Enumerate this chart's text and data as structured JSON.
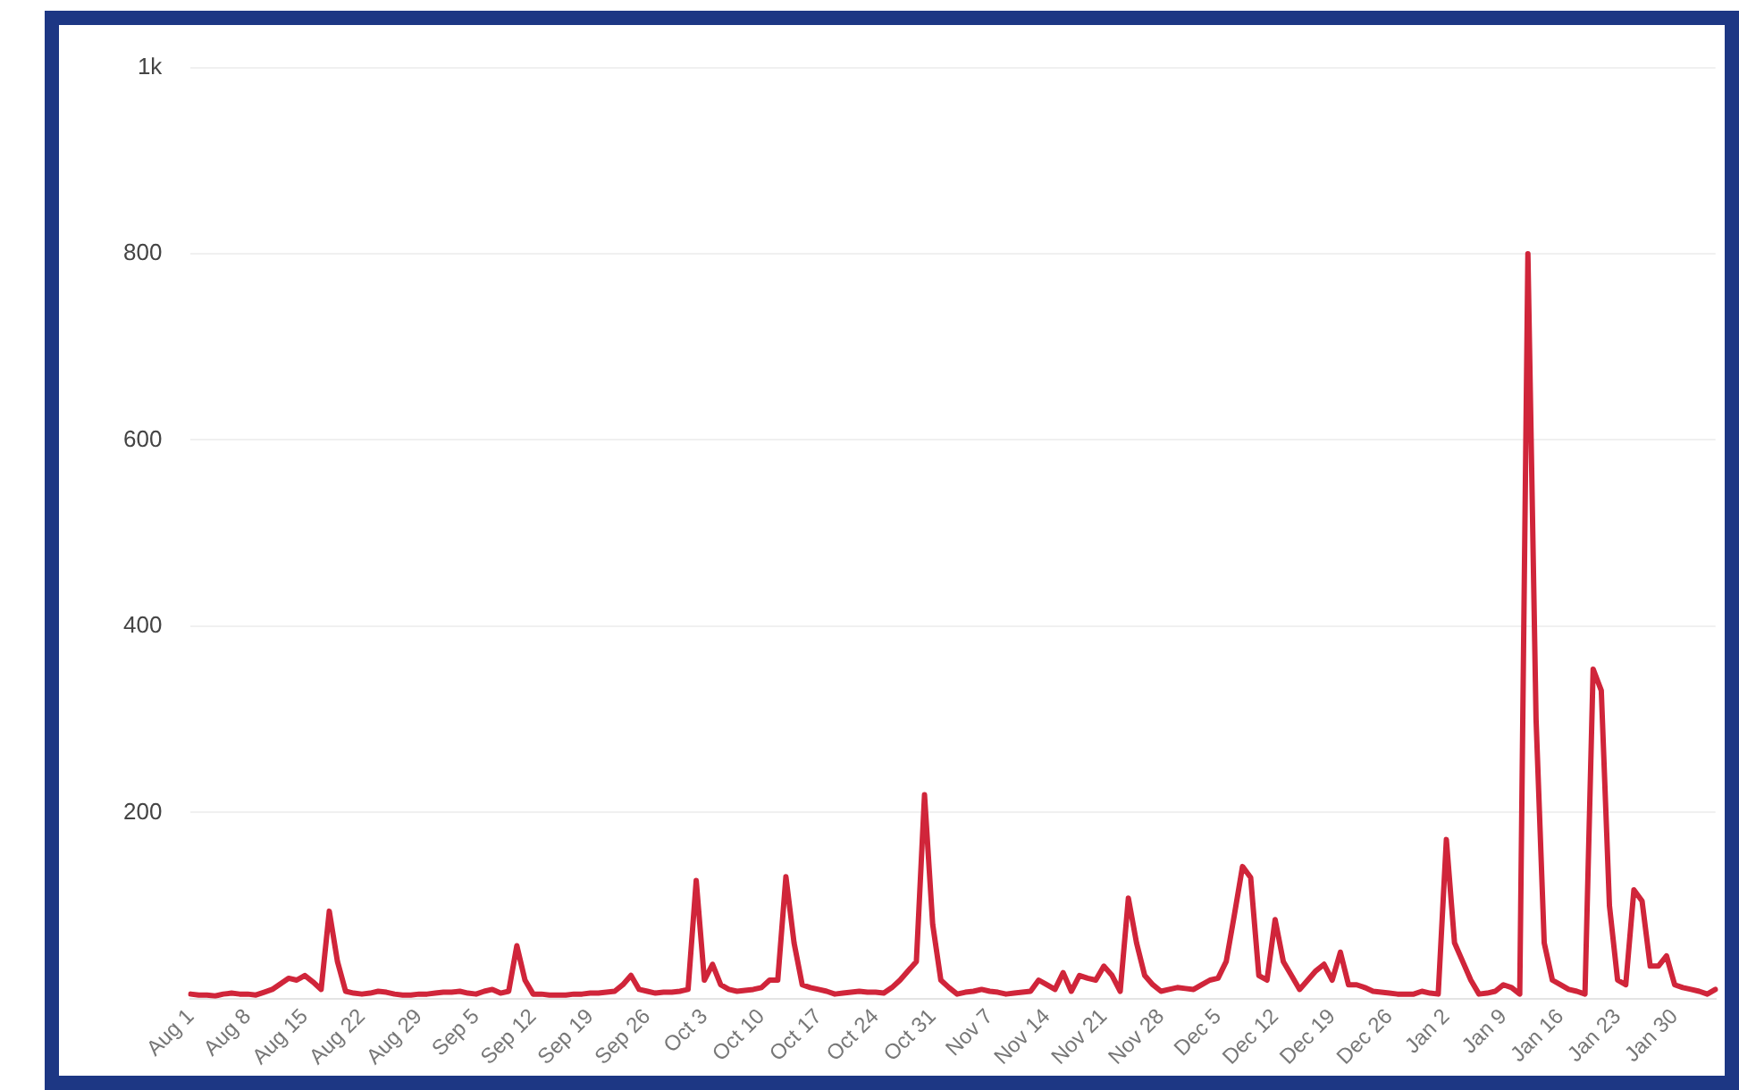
{
  "chart_data": {
    "type": "line",
    "ylim": [
      0,
      1000
    ],
    "categories": [
      "Aug 1",
      null,
      null,
      null,
      null,
      null,
      null,
      "Aug 8",
      null,
      null,
      null,
      null,
      null,
      null,
      "Aug 15",
      null,
      null,
      null,
      null,
      null,
      null,
      "Aug 22",
      null,
      null,
      null,
      null,
      null,
      null,
      "Aug 29",
      null,
      null,
      null,
      null,
      null,
      null,
      "Sep 5",
      null,
      null,
      null,
      null,
      null,
      null,
      "Sep 12",
      null,
      null,
      null,
      null,
      null,
      null,
      "Sep 19",
      null,
      null,
      null,
      null,
      null,
      null,
      "Sep 26",
      null,
      null,
      null,
      null,
      null,
      null,
      "Oct 3",
      null,
      null,
      null,
      null,
      null,
      null,
      "Oct 10",
      null,
      null,
      null,
      null,
      null,
      null,
      "Oct 17",
      null,
      null,
      null,
      null,
      null,
      null,
      "Oct 24",
      null,
      null,
      null,
      null,
      null,
      null,
      "Oct 31",
      null,
      null,
      null,
      null,
      null,
      null,
      "Nov 7",
      null,
      null,
      null,
      null,
      null,
      null,
      "Nov 14",
      null,
      null,
      null,
      null,
      null,
      null,
      "Nov 21",
      null,
      null,
      null,
      null,
      null,
      null,
      "Nov 28",
      null,
      null,
      null,
      null,
      null,
      null,
      "Dec 5",
      null,
      null,
      null,
      null,
      null,
      null,
      "Dec 12",
      null,
      null,
      null,
      null,
      null,
      null,
      "Dec 19",
      null,
      null,
      null,
      null,
      null,
      null,
      "Dec 26",
      null,
      null,
      null,
      null,
      null,
      null,
      "Jan 2",
      null,
      null,
      null,
      null,
      null,
      null,
      "Jan 9",
      null,
      null,
      null,
      null,
      null,
      null,
      "Jan 16",
      null,
      null,
      null,
      null,
      null,
      null,
      "Jan 23",
      null,
      null,
      null,
      null,
      null,
      null,
      "Jan 30",
      null,
      null,
      null,
      null,
      null
    ],
    "yticks": [
      200,
      400,
      600,
      800,
      {
        "value": 1000,
        "label": "1k"
      }
    ],
    "grid": "y",
    "legend": false,
    "line_style": "solid",
    "series": [
      {
        "color": "#d0253a",
        "values": [
          5,
          4,
          4,
          3,
          5,
          6,
          5,
          5,
          4,
          7,
          10,
          16,
          22,
          20,
          25,
          18,
          10,
          94,
          40,
          8,
          6,
          5,
          6,
          8,
          7,
          5,
          4,
          4,
          5,
          5,
          6,
          7,
          7,
          8,
          6,
          5,
          8,
          10,
          6,
          8,
          57,
          20,
          5,
          5,
          4,
          4,
          4,
          5,
          5,
          6,
          6,
          7,
          8,
          15,
          25,
          10,
          8,
          6,
          7,
          7,
          8,
          10,
          127,
          20,
          37,
          15,
          10,
          8,
          9,
          10,
          12,
          20,
          20,
          131,
          60,
          15,
          12,
          10,
          8,
          5,
          6,
          7,
          8,
          7,
          7,
          6,
          12,
          20,
          30,
          40,
          219,
          80,
          20,
          12,
          5,
          7,
          8,
          10,
          8,
          7,
          5,
          6,
          7,
          8,
          20,
          15,
          10,
          28,
          8,
          25,
          22,
          20,
          35,
          25,
          8,
          108,
          60,
          25,
          15,
          8,
          10,
          12,
          11,
          10,
          15,
          20,
          22,
          40,
          90,
          142,
          130,
          25,
          20,
          85,
          40,
          25,
          10,
          20,
          30,
          37,
          20,
          50,
          15,
          15,
          12,
          8,
          7,
          6,
          5,
          5,
          5,
          8,
          6,
          5,
          171,
          60,
          40,
          20,
          5,
          6,
          8,
          15,
          12,
          5,
          800,
          300,
          60,
          20,
          15,
          10,
          8,
          5,
          354,
          331,
          100,
          20,
          15,
          117,
          105,
          35,
          35,
          46,
          15,
          12,
          10,
          8,
          5,
          10
        ]
      }
    ]
  }
}
